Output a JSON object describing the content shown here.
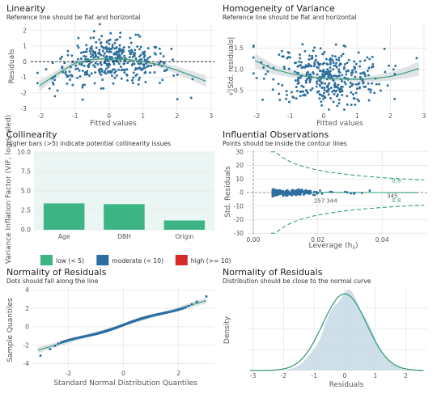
{
  "colors": {
    "point": "#2e6f9e",
    "line": "#3a9c7a",
    "band": "#d6dbe0",
    "low": "#3cb486",
    "moderate": "#2c6ea3",
    "high": "#d62b2b",
    "grid": "#e6e6e6",
    "collin_bg": "#ebf5f4",
    "ref": "#333333"
  },
  "chart_data": [
    {
      "id": "linearity",
      "type": "scatter",
      "title": "Linearity",
      "subtitle": "Reference line should be flat and horizontal",
      "xlabel": "Fitted values",
      "ylabel": "Residuals",
      "xlim": [
        -2.3,
        3.1
      ],
      "ylim": [
        -3.2,
        2.5
      ],
      "xticks": [
        -2,
        -1,
        0,
        1,
        2,
        3
      ],
      "yticks": [
        -3,
        -2,
        -1,
        0,
        1,
        2
      ],
      "reference_line": 0,
      "n_points": 380,
      "smooth": {
        "x": [
          -2.05,
          -1.5,
          -1.0,
          -0.5,
          0.0,
          0.5,
          1.0,
          1.5,
          2.0,
          2.5,
          2.9
        ],
        "y": [
          -1.55,
          -0.75,
          -0.1,
          0.15,
          0.2,
          0.15,
          0.0,
          -0.2,
          -0.55,
          -0.95,
          -1.3
        ]
      }
    },
    {
      "id": "homogeneity",
      "type": "scatter",
      "title": "Homogeneity of Variance",
      "subtitle": "Reference line should be flat and horizontal",
      "xlabel": "Fitted values",
      "ylabel": "√|Std. residuals|",
      "xlim": [
        -2.3,
        3.1
      ],
      "ylim": [
        0.0,
        2.1
      ],
      "xticks": [
        -2,
        -1,
        0,
        1,
        2,
        3
      ],
      "yticks": [
        0.5,
        1.0,
        1.5
      ],
      "n_points": 380,
      "smooth": {
        "x": [
          -2.05,
          -1.5,
          -1.0,
          -0.5,
          0.0,
          0.5,
          1.0,
          1.5,
          2.0,
          2.5,
          2.9
        ],
        "y": [
          1.2,
          1.0,
          0.9,
          0.83,
          0.79,
          0.77,
          0.76,
          0.78,
          0.83,
          0.93,
          1.03
        ]
      }
    },
    {
      "id": "collinearity",
      "type": "bar",
      "title": "Collinearity",
      "subtitle": "Higher bars (>5) indicate potential collinearity issues",
      "xlabel": "",
      "ylabel": "Variance Inflation Factor (VIF, log-scaled)",
      "categories": [
        "Age",
        "DBH",
        "Origin"
      ],
      "values": [
        3.4,
        3.3,
        1.2
      ],
      "ylim": [
        0,
        10
      ],
      "yticks": [
        "0.0",
        "2.5",
        "5.0",
        "7.5",
        "10.0"
      ],
      "legend": [
        {
          "key": "low",
          "label": "low (< 5)"
        },
        {
          "key": "moderate",
          "label": "moderate (< 10)"
        },
        {
          "key": "high",
          "label": "high (>= 10)"
        }
      ]
    },
    {
      "id": "influential",
      "type": "scatter",
      "title": "Influential Observations",
      "subtitle": "Points should be inside the contour lines",
      "xlabel": "Leverage (h",
      "xlabel_sub": "ii",
      "ylabel": "Std. Residuals",
      "xlim": [
        -0.002,
        0.054
      ],
      "ylim": [
        -31,
        31
      ],
      "xticks": [
        "0.00",
        "0.02",
        "0.04"
      ],
      "xtick_values": [
        0.0,
        0.02,
        0.04
      ],
      "yticks": [
        -30,
        -20,
        -10,
        0,
        10,
        20,
        30
      ],
      "contour_label": "0.8",
      "point_labels": [
        {
          "label": "257",
          "x": 0.0188,
          "y": -3.2
        },
        {
          "label": "344",
          "x": 0.0227,
          "y": -3.2
        },
        {
          "label": "345",
          "x": 0.0415,
          "y": 0.2
        }
      ],
      "n_points": 380
    },
    {
      "id": "qq",
      "type": "scatter",
      "title": "Normality of Residuals",
      "subtitle": "Dots should fall along the line",
      "xlabel": "Standard Normal Distribution Quantiles",
      "ylabel": "Sample Quantiles",
      "xlim": [
        -3.3,
        3.3
      ],
      "ylim": [
        -4.5,
        4.3
      ],
      "xticks": [
        -2,
        0,
        2
      ],
      "yticks": [
        -4,
        -2,
        0,
        2,
        4
      ],
      "line": {
        "x": [
          -3.1,
          3.0
        ],
        "y": [
          -2.55,
          2.85
        ]
      }
    },
    {
      "id": "density",
      "type": "area",
      "title": "Normality of Residuals",
      "subtitle": "Distribution should be close to the normal curve",
      "xlabel": "Residuals",
      "ylabel": "Density",
      "xlim": [
        -3.2,
        2.7
      ],
      "ylim": [
        0,
        1
      ],
      "xticks": [
        -3,
        -2,
        -1,
        0,
        1,
        2
      ],
      "normal_curve": {
        "mean": 0,
        "sd": 0.72
      }
    }
  ]
}
